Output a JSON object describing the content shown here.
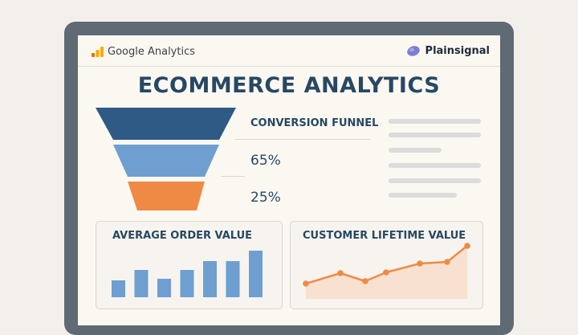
{
  "header": {
    "left_brand": "Google Analytics",
    "right_brand": "Plainsignal"
  },
  "title": "ECOMMERCE ANALYTICS",
  "funnel": {
    "title": "CONVERSION FUNNEL",
    "stage_labels": [
      "65%",
      "25%"
    ],
    "colors": [
      "#2f5a86",
      "#6e9fd0",
      "#ef8a45"
    ]
  },
  "cards": {
    "aov_title": "AVERAGE ORDER VALUE",
    "clv_title": "CUSTOMER LIFETIME VALUE"
  },
  "chart_data": [
    {
      "type": "bar",
      "title": "AVERAGE ORDER VALUE",
      "values": [
        21,
        34,
        23,
        34,
        45,
        45,
        58
      ],
      "color": "#6e9fd0"
    },
    {
      "type": "area",
      "title": "CUSTOMER LIFETIME VALUE",
      "values": [
        15,
        28,
        18,
        29,
        40,
        42,
        62
      ],
      "color": "#ef8a45"
    }
  ]
}
